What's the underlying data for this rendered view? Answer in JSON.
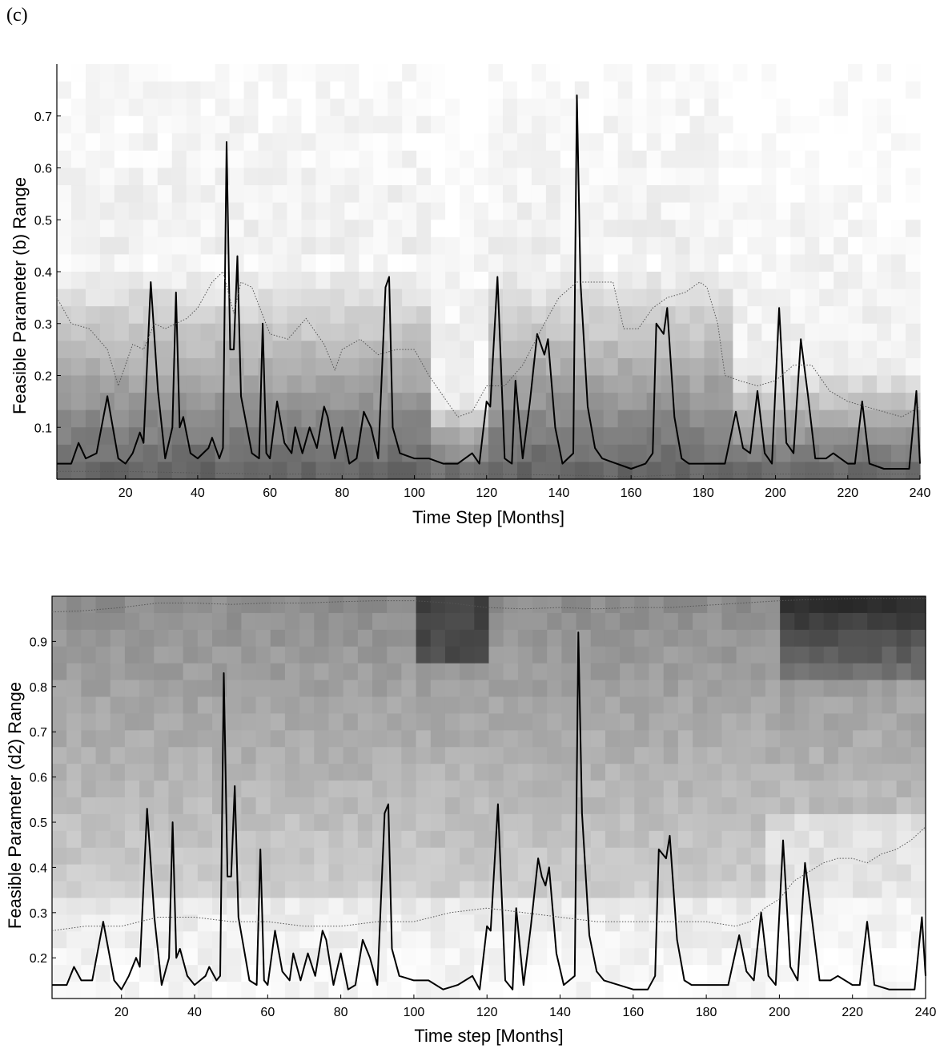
{
  "panel_label": "(c)",
  "chart_data": [
    {
      "type": "line",
      "background": "heatmap",
      "title": "",
      "xlabel": "Time Step [Months]",
      "ylabel": "Feasible Parameter (b) Range",
      "xlim": [
        1,
        240
      ],
      "ylim": [
        0,
        0.8
      ],
      "xticks": [
        20,
        40,
        60,
        80,
        100,
        120,
        140,
        160,
        180,
        200,
        220,
        240
      ],
      "xtick_labels": [
        "20",
        "40",
        "60",
        "80",
        "100",
        "120",
        "140",
        "160",
        "180",
        "200",
        "220",
        "240"
      ],
      "yticks": [
        0.1,
        0.2,
        0.3,
        0.4,
        0.5,
        0.6,
        0.7
      ],
      "ytick_labels": [
        "0.1",
        "0.2",
        "0.3",
        "0.4",
        "0.5",
        "0.6",
        "0.7"
      ],
      "grid": false,
      "series": [
        {
          "style": "solid",
          "x": [
            1,
            5,
            7,
            9,
            12,
            15,
            18,
            20,
            22,
            24,
            25,
            27,
            29,
            31,
            33,
            34,
            35,
            36,
            38,
            40,
            43,
            44,
            46,
            47,
            48,
            49,
            50,
            51,
            52,
            55,
            57,
            58,
            59,
            60,
            62,
            64,
            66,
            67,
            69,
            71,
            73,
            75,
            76,
            78,
            80,
            82,
            84,
            86,
            88,
            90,
            92,
            93,
            94,
            96,
            100,
            104,
            108,
            112,
            116,
            118,
            120,
            121,
            123,
            125,
            127,
            128,
            130,
            132,
            134,
            135,
            136,
            137,
            139,
            141,
            144,
            145,
            146,
            148,
            150,
            152,
            156,
            160,
            164,
            166,
            167,
            169,
            170,
            172,
            174,
            176,
            180,
            184,
            186,
            189,
            191,
            193,
            195,
            197,
            199,
            201,
            203,
            205,
            207,
            209,
            211,
            214,
            216,
            220,
            222,
            224,
            226,
            230,
            234,
            237,
            239,
            240
          ],
          "y": [
            0.03,
            0.03,
            0.07,
            0.04,
            0.05,
            0.16,
            0.04,
            0.03,
            0.05,
            0.09,
            0.07,
            0.38,
            0.17,
            0.04,
            0.1,
            0.36,
            0.1,
            0.12,
            0.05,
            0.04,
            0.06,
            0.08,
            0.04,
            0.06,
            0.65,
            0.25,
            0.25,
            0.43,
            0.16,
            0.05,
            0.04,
            0.3,
            0.05,
            0.04,
            0.15,
            0.07,
            0.05,
            0.1,
            0.05,
            0.1,
            0.06,
            0.14,
            0.12,
            0.04,
            0.1,
            0.03,
            0.04,
            0.13,
            0.1,
            0.04,
            0.37,
            0.39,
            0.1,
            0.05,
            0.04,
            0.04,
            0.03,
            0.03,
            0.05,
            0.03,
            0.15,
            0.14,
            0.39,
            0.04,
            0.03,
            0.19,
            0.04,
            0.15,
            0.28,
            0.26,
            0.24,
            0.27,
            0.1,
            0.03,
            0.05,
            0.74,
            0.38,
            0.14,
            0.06,
            0.04,
            0.03,
            0.02,
            0.03,
            0.05,
            0.3,
            0.28,
            0.33,
            0.12,
            0.04,
            0.03,
            0.03,
            0.03,
            0.03,
            0.13,
            0.06,
            0.05,
            0.17,
            0.05,
            0.03,
            0.33,
            0.07,
            0.05,
            0.27,
            0.16,
            0.04,
            0.04,
            0.05,
            0.03,
            0.03,
            0.15,
            0.03,
            0.02,
            0.02,
            0.02,
            0.17,
            0.03
          ]
        },
        {
          "style": "dotted",
          "x": [
            1,
            5,
            10,
            15,
            18,
            22,
            25,
            28,
            31,
            34,
            37,
            40,
            44,
            47,
            50,
            52,
            55,
            60,
            65,
            70,
            75,
            78,
            80,
            85,
            90,
            95,
            100,
            104,
            108,
            112,
            116,
            120,
            125,
            130,
            136,
            140,
            145,
            150,
            155,
            158,
            162,
            166,
            170,
            175,
            179,
            181,
            184,
            186,
            190,
            195,
            200,
            205,
            210,
            215,
            220,
            225,
            230,
            235,
            240
          ],
          "y": [
            0.35,
            0.3,
            0.29,
            0.25,
            0.18,
            0.26,
            0.25,
            0.3,
            0.29,
            0.3,
            0.31,
            0.33,
            0.38,
            0.4,
            0.32,
            0.38,
            0.37,
            0.28,
            0.27,
            0.31,
            0.26,
            0.21,
            0.25,
            0.27,
            0.24,
            0.25,
            0.25,
            0.2,
            0.16,
            0.12,
            0.13,
            0.18,
            0.18,
            0.22,
            0.3,
            0.35,
            0.38,
            0.38,
            0.38,
            0.29,
            0.29,
            0.33,
            0.35,
            0.36,
            0.38,
            0.37,
            0.3,
            0.2,
            0.19,
            0.18,
            0.19,
            0.22,
            0.22,
            0.17,
            0.15,
            0.14,
            0.13,
            0.12,
            0.14
          ]
        },
        {
          "style": "dotted",
          "x": [
            1,
            20,
            40,
            60,
            80,
            100,
            120,
            140,
            160,
            180,
            200,
            220,
            240
          ],
          "y": [
            0.015,
            0.015,
            0.012,
            0.01,
            0.01,
            0.01,
            0.01,
            0.008,
            0.005,
            0.01,
            0.01,
            0.01,
            0.01
          ]
        }
      ]
    },
    {
      "type": "line",
      "background": "heatmap",
      "title": "",
      "xlabel": "Time step [Months]",
      "ylabel": "Feasible Parameter (d2) Range",
      "xlim": [
        1,
        240
      ],
      "ylim": [
        0.11,
        1.0
      ],
      "xticks": [
        20,
        40,
        60,
        80,
        100,
        120,
        140,
        160,
        180,
        200,
        220,
        240
      ],
      "xtick_labels": [
        "20",
        "40",
        "60",
        "80",
        "100",
        "120",
        "140",
        "160",
        "180",
        "200",
        "220",
        "240"
      ],
      "yticks": [
        0.2,
        0.3,
        0.4,
        0.5,
        0.6,
        0.7,
        0.8,
        0.9
      ],
      "ytick_labels": [
        "0.2",
        "0.3",
        "0.4",
        "0.5",
        "0.6",
        "0.7",
        "0.8",
        "0.9"
      ],
      "grid": false,
      "series": [
        {
          "style": "solid",
          "x": [
            1,
            5,
            7,
            9,
            12,
            15,
            18,
            20,
            22,
            24,
            25,
            27,
            29,
            31,
            33,
            34,
            35,
            36,
            38,
            40,
            43,
            44,
            46,
            47,
            48,
            49,
            50,
            51,
            52,
            55,
            57,
            58,
            59,
            60,
            62,
            64,
            66,
            67,
            69,
            71,
            73,
            75,
            76,
            78,
            80,
            82,
            84,
            86,
            88,
            90,
            92,
            93,
            94,
            96,
            100,
            104,
            108,
            112,
            116,
            118,
            120,
            121,
            123,
            125,
            127,
            128,
            130,
            132,
            134,
            135,
            136,
            137,
            139,
            141,
            144,
            145,
            146,
            148,
            150,
            152,
            156,
            160,
            164,
            166,
            167,
            169,
            170,
            172,
            174,
            176,
            180,
            184,
            186,
            189,
            191,
            193,
            195,
            197,
            199,
            201,
            203,
            205,
            207,
            209,
            211,
            214,
            216,
            220,
            222,
            224,
            226,
            230,
            234,
            237,
            239,
            240
          ],
          "y": [
            0.14,
            0.14,
            0.18,
            0.15,
            0.15,
            0.28,
            0.15,
            0.13,
            0.16,
            0.2,
            0.18,
            0.53,
            0.29,
            0.14,
            0.2,
            0.5,
            0.2,
            0.22,
            0.16,
            0.14,
            0.16,
            0.18,
            0.15,
            0.16,
            0.83,
            0.38,
            0.38,
            0.58,
            0.29,
            0.15,
            0.14,
            0.44,
            0.15,
            0.14,
            0.26,
            0.17,
            0.15,
            0.21,
            0.15,
            0.21,
            0.16,
            0.26,
            0.24,
            0.14,
            0.21,
            0.13,
            0.14,
            0.24,
            0.2,
            0.14,
            0.52,
            0.54,
            0.22,
            0.16,
            0.15,
            0.15,
            0.13,
            0.14,
            0.16,
            0.13,
            0.27,
            0.26,
            0.54,
            0.15,
            0.13,
            0.31,
            0.14,
            0.27,
            0.42,
            0.38,
            0.36,
            0.4,
            0.21,
            0.14,
            0.16,
            0.92,
            0.52,
            0.25,
            0.17,
            0.15,
            0.14,
            0.13,
            0.13,
            0.16,
            0.44,
            0.42,
            0.47,
            0.24,
            0.15,
            0.14,
            0.14,
            0.14,
            0.14,
            0.25,
            0.17,
            0.15,
            0.3,
            0.16,
            0.14,
            0.46,
            0.18,
            0.15,
            0.41,
            0.28,
            0.15,
            0.15,
            0.16,
            0.14,
            0.14,
            0.28,
            0.14,
            0.13,
            0.13,
            0.13,
            0.29,
            0.16
          ]
        },
        {
          "style": "dotted",
          "x": [
            1,
            10,
            20,
            30,
            40,
            50,
            60,
            70,
            80,
            90,
            100,
            110,
            120,
            130,
            140,
            150,
            160,
            170,
            180,
            188,
            192,
            196,
            200,
            204,
            208,
            212,
            216,
            220,
            224,
            228,
            232,
            236,
            240
          ],
          "y": [
            0.26,
            0.27,
            0.27,
            0.29,
            0.29,
            0.28,
            0.28,
            0.27,
            0.27,
            0.28,
            0.28,
            0.3,
            0.31,
            0.3,
            0.29,
            0.28,
            0.28,
            0.28,
            0.28,
            0.27,
            0.28,
            0.31,
            0.33,
            0.37,
            0.39,
            0.41,
            0.42,
            0.42,
            0.41,
            0.43,
            0.44,
            0.46,
            0.49
          ]
        },
        {
          "style": "dotted",
          "x": [
            1,
            10,
            20,
            30,
            40,
            50,
            60,
            70,
            80,
            90,
            100,
            110,
            120,
            130,
            140,
            150,
            160,
            170,
            180,
            190,
            200,
            210,
            220,
            230,
            240
          ],
          "y": [
            0.965,
            0.968,
            0.975,
            0.985,
            0.985,
            0.982,
            0.985,
            0.985,
            0.988,
            0.99,
            0.99,
            0.985,
            0.975,
            0.972,
            0.975,
            0.972,
            0.975,
            0.975,
            0.98,
            0.985,
            0.99,
            0.993,
            0.995,
            0.995,
            0.995
          ]
        }
      ]
    }
  ]
}
